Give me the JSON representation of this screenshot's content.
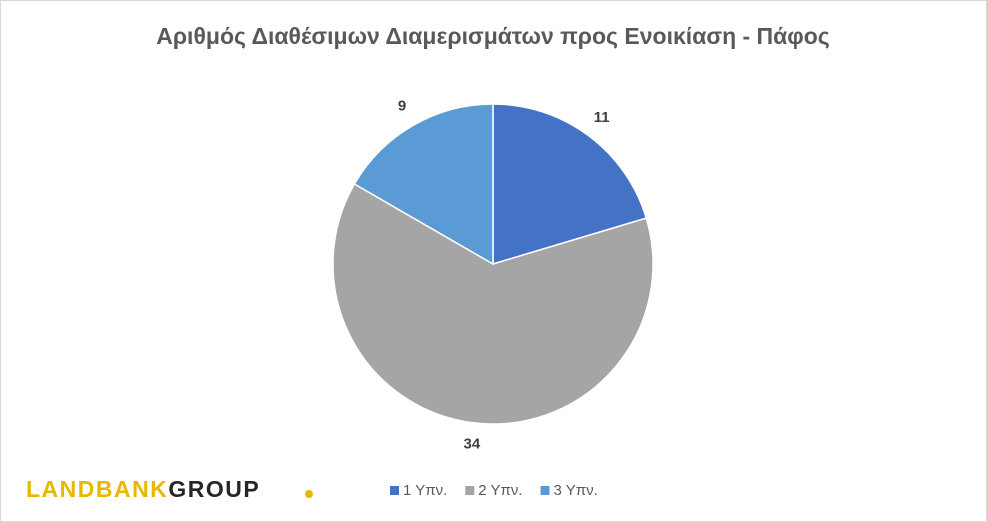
{
  "chart_data": {
    "type": "pie",
    "title": "Αριθμός Διαθέσιμων Διαμερισμάτων προς Ενοικίαση - Πάφος",
    "categories": [
      "1 Υπν.",
      "2 Υπν.",
      "3 Υπν."
    ],
    "values": [
      11,
      34,
      9
    ],
    "colors": [
      "#4472c4",
      "#a5a5a5",
      "#5b9bd5"
    ],
    "legend": "bottom"
  },
  "logo": {
    "first": "LANDBANK",
    "second": "GROUP"
  }
}
